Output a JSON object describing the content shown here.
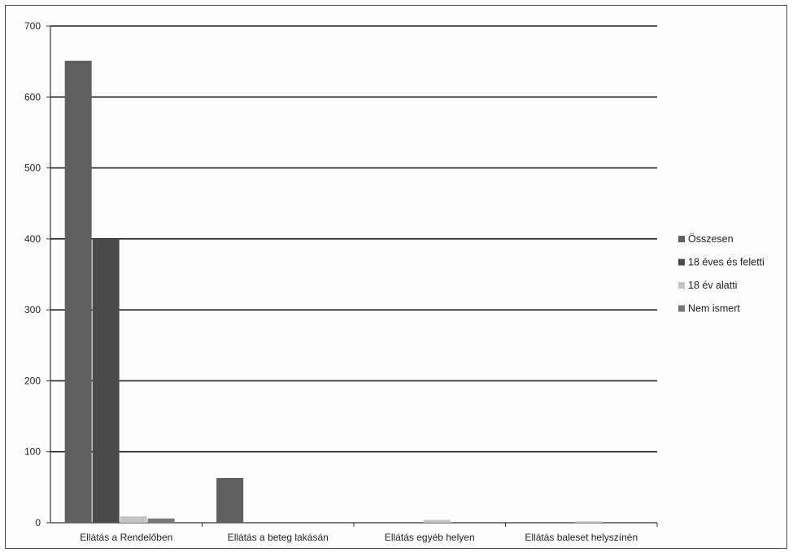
{
  "chart_data": {
    "type": "bar",
    "title": "",
    "xlabel": "",
    "ylabel": "",
    "ylim": [
      0,
      700
    ],
    "yticks": [
      0,
      100,
      200,
      300,
      400,
      500,
      600,
      700
    ],
    "grid": true,
    "legend_position": "right",
    "categories": [
      "Ellátás a Rendelőben",
      "Ellátás a beteg lakásán",
      "Ellátás egyéb helyen",
      "Ellátás baleset helyszínén"
    ],
    "series": [
      {
        "name": "Összesen",
        "color": "#5f5f5f",
        "values": [
          651,
          63,
          0,
          0
        ]
      },
      {
        "name": "18 éves és feletti",
        "color": "#4a4a4a",
        "values": [
          400,
          0,
          0,
          0
        ]
      },
      {
        "name": "18 év alatti",
        "color": "#c4c4c4",
        "values": [
          9,
          0,
          4,
          2
        ]
      },
      {
        "name": "Nem ismert",
        "color": "#787878",
        "values": [
          6,
          0,
          0,
          0
        ]
      }
    ]
  }
}
